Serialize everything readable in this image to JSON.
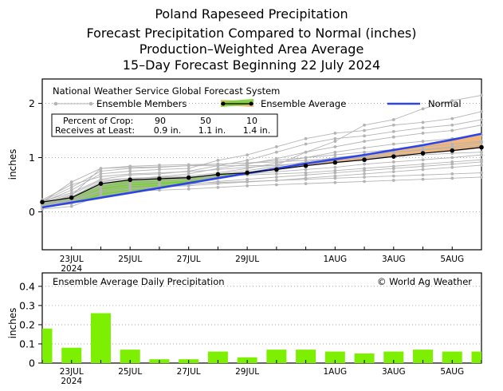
{
  "header": {
    "title": "Poland Rapeseed Precipitation",
    "subtitle1": "Forecast Precipitation Compared to Normal (inches)",
    "subtitle2": "Production–Weighted Area Average",
    "subtitle3": "15–Day Forecast Beginning 22 July 2024"
  },
  "colors": {
    "ensemble_members": "#b4b4b4",
    "ensemble_average": "#000000",
    "normal": "#2d45e6",
    "above_normal_fill": "#f2b77c",
    "below_normal_fill": "#7ccf3c",
    "daily_bars": "#7cf000"
  },
  "chart_data": [
    {
      "type": "line",
      "title": "National Weather Service Global Forecast System",
      "ylabel": "inches",
      "ylim": [
        -0.7,
        2.45
      ],
      "yticks": [
        "0",
        "1",
        "2"
      ],
      "x_tick_labels": [
        "23JUL\n2024",
        "25JUL",
        "27JUL",
        "29JUL",
        "1AUG",
        "3AUG",
        "5AUG"
      ],
      "x_tick_days": [
        1,
        3,
        5,
        7,
        10,
        12,
        14
      ],
      "grid": true,
      "legend": {
        "members": "Ensemble Members",
        "average": "Ensemble Average",
        "normal": "Normal"
      },
      "crop_table": {
        "row1_label": "Percent of Crop:",
        "row1_values": [
          "90",
          "50",
          "10"
        ],
        "row2_label": "Receives at Least:",
        "row2_values": [
          "0.9 in.",
          "1.1 in.",
          "1.4 in."
        ]
      },
      "x": [
        0,
        1,
        2,
        3,
        4,
        5,
        6,
        7,
        8,
        9,
        10,
        11,
        12,
        13,
        14,
        15
      ],
      "ensemble_average": [
        0.18,
        0.26,
        0.52,
        0.59,
        0.61,
        0.63,
        0.69,
        0.72,
        0.78,
        0.85,
        0.91,
        0.96,
        1.02,
        1.08,
        1.13,
        1.19
      ],
      "normal": [
        0.08,
        0.17,
        0.26,
        0.35,
        0.44,
        0.53,
        0.62,
        0.71,
        0.8,
        0.89,
        0.97,
        1.05,
        1.14,
        1.23,
        1.33,
        1.44
      ],
      "ensemble_members": [
        [
          0.15,
          0.3,
          0.8,
          0.82,
          0.83,
          0.85,
          0.85,
          0.85,
          0.86,
          1.1,
          1.3,
          1.6,
          1.7,
          1.9,
          2.05,
          2.15
        ],
        [
          0.18,
          0.4,
          0.7,
          0.75,
          0.78,
          0.8,
          0.95,
          1.05,
          1.2,
          1.35,
          1.45,
          1.5,
          1.6,
          1.65,
          1.72,
          1.85
        ],
        [
          0.2,
          0.35,
          0.6,
          0.68,
          0.7,
          0.75,
          0.85,
          0.95,
          1.1,
          1.25,
          1.35,
          1.4,
          1.48,
          1.55,
          1.6,
          1.7
        ],
        [
          0.12,
          0.22,
          0.5,
          0.6,
          0.65,
          0.7,
          0.8,
          0.88,
          0.98,
          1.1,
          1.2,
          1.3,
          1.38,
          1.45,
          1.5,
          1.6
        ],
        [
          0.16,
          0.28,
          0.55,
          0.62,
          0.64,
          0.66,
          0.72,
          0.8,
          0.9,
          1.0,
          1.1,
          1.18,
          1.25,
          1.3,
          1.35,
          1.42
        ],
        [
          0.1,
          0.2,
          0.45,
          0.52,
          0.55,
          0.58,
          0.64,
          0.7,
          0.78,
          0.85,
          0.95,
          1.02,
          1.1,
          1.15,
          1.2,
          1.28
        ],
        [
          0.22,
          0.5,
          0.65,
          0.7,
          0.72,
          0.74,
          0.78,
          0.82,
          0.86,
          0.9,
          0.95,
          1.0,
          1.05,
          1.08,
          1.12,
          1.18
        ],
        [
          0.14,
          0.24,
          0.48,
          0.56,
          0.58,
          0.6,
          0.66,
          0.7,
          0.74,
          0.78,
          0.82,
          0.88,
          0.92,
          0.96,
          1.0,
          1.05
        ],
        [
          0.18,
          0.32,
          0.58,
          0.62,
          0.63,
          0.64,
          0.66,
          0.68,
          0.7,
          0.72,
          0.76,
          0.8,
          0.84,
          0.88,
          0.92,
          0.96
        ],
        [
          0.08,
          0.15,
          0.35,
          0.42,
          0.45,
          0.5,
          0.56,
          0.6,
          0.64,
          0.68,
          0.72,
          0.76,
          0.8,
          0.84,
          0.88,
          0.92
        ],
        [
          0.12,
          0.2,
          0.4,
          0.48,
          0.5,
          0.52,
          0.54,
          0.56,
          0.58,
          0.6,
          0.62,
          0.64,
          0.66,
          0.68,
          0.7,
          0.72
        ],
        [
          0.2,
          0.45,
          0.75,
          0.8,
          0.82,
          0.85,
          0.88,
          0.9,
          0.92,
          0.95,
          0.98,
          1.0,
          1.02,
          1.05,
          1.08,
          1.1
        ],
        [
          0.05,
          0.1,
          0.3,
          0.38,
          0.4,
          0.42,
          0.45,
          0.48,
          0.5,
          0.52,
          0.54,
          0.56,
          0.58,
          0.6,
          0.62,
          0.64
        ],
        [
          0.15,
          0.26,
          0.52,
          0.58,
          0.6,
          0.62,
          0.7,
          0.76,
          0.84,
          0.92,
          1.0,
          1.05,
          1.1,
          1.14,
          1.18,
          1.22
        ],
        [
          0.18,
          0.55,
          0.8,
          0.84,
          0.86,
          0.87,
          0.88,
          0.9,
          0.95,
          1.0,
          1.05,
          1.1,
          1.15,
          1.2,
          1.25,
          1.3
        ],
        [
          0.1,
          0.18,
          0.38,
          0.44,
          0.46,
          0.48,
          0.52,
          0.55,
          0.58,
          0.62,
          0.66,
          0.7,
          0.74,
          0.78,
          0.82,
          0.86
        ]
      ]
    },
    {
      "type": "bar",
      "title": "Ensemble Average Daily Precipitation",
      "annotation": "© World Ag Weather",
      "ylabel": "inches",
      "ylim": [
        0,
        0.47
      ],
      "yticks": [
        "0",
        "0.1",
        "0.2",
        "0.3",
        "0.4"
      ],
      "x": [
        0,
        1,
        2,
        3,
        4,
        5,
        6,
        7,
        8,
        9,
        10,
        11,
        12,
        13,
        14,
        15
      ],
      "values": [
        0.18,
        0.08,
        0.26,
        0.07,
        0.02,
        0.02,
        0.06,
        0.03,
        0.07,
        0.07,
        0.06,
        0.05,
        0.06,
        0.07,
        0.06,
        0.06
      ]
    }
  ]
}
